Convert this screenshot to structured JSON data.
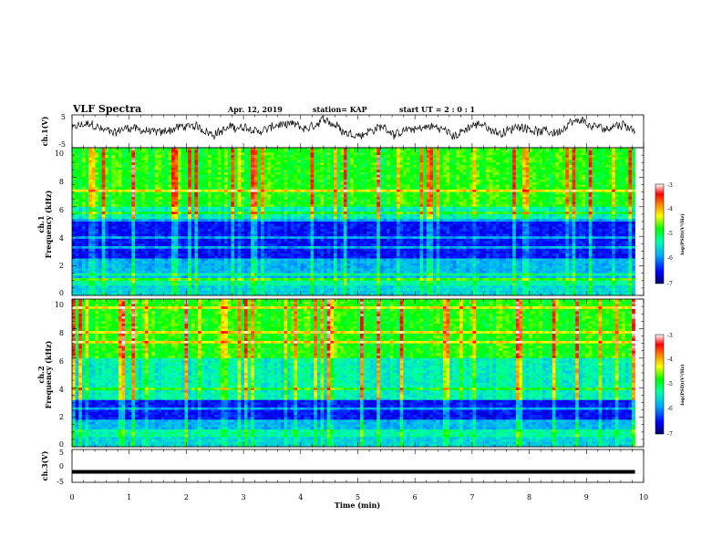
{
  "chart_data": [
    {
      "type": "line",
      "panel": "ch1-waveform",
      "title": "VLF Spectra",
      "date": "Apr. 12, 2019",
      "station": "station= KAP",
      "start": "start  UT =  2 : 0 : 1",
      "ylabel": "ch.1(V)",
      "ylim": [
        -5,
        5
      ],
      "yticks": [
        "5",
        "-5"
      ],
      "xlim": [
        0,
        10
      ],
      "approx_level": 0.6,
      "approx_amplitude": 2.5
    },
    {
      "type": "heatmap",
      "panel": "ch1-spectrogram",
      "ylabel": "ch.1",
      "ylabel2": "Frequency (kHz)",
      "ylim": [
        0,
        10
      ],
      "yticks": [
        "0",
        "2",
        "4",
        "6",
        "8",
        "10"
      ],
      "xlim": [
        0,
        9.85
      ],
      "colorbar": {
        "label": "log(PSD)(V²/Hz)",
        "range": [
          -7,
          -3
        ],
        "ticks": [
          "-3",
          "-4",
          "-5",
          "-6",
          "-7"
        ],
        "colors": [
          "#000070",
          "#0000ff",
          "#00aaff",
          "#00ffaa",
          "#00ff00",
          "#ffff00",
          "#ff8000",
          "#ff0000",
          "#ffffff"
        ]
      }
    },
    {
      "type": "heatmap",
      "panel": "ch2-spectrogram",
      "ylabel": "ch.2",
      "ylabel2": "Frequency (kHz)",
      "ylim": [
        0,
        10
      ],
      "yticks": [
        "0",
        "2",
        "4",
        "6",
        "8",
        "10"
      ],
      "xlim": [
        0,
        9.85
      ],
      "colorbar": {
        "label": "log(PSD)(V²/Hz)",
        "range": [
          -7,
          -3
        ],
        "ticks": [
          "-3",
          "-4",
          "-5",
          "-6",
          "-7"
        ],
        "colors": [
          "#000070",
          "#0000ff",
          "#00aaff",
          "#00ffaa",
          "#00ff00",
          "#ffff00",
          "#ff8000",
          "#ff0000",
          "#ffffff"
        ]
      }
    },
    {
      "type": "line",
      "panel": "ch3-waveform",
      "ylabel": "ch.3(V)",
      "ylim": [
        -5,
        5
      ],
      "yticks": [
        "5",
        "0",
        "-5"
      ],
      "level": -1.8,
      "xlim": [
        0,
        10
      ]
    }
  ],
  "xaxis": {
    "label": "Time (min)",
    "ticks": [
      "0",
      "1",
      "2",
      "3",
      "4",
      "5",
      "6",
      "7",
      "8",
      "9",
      "10"
    ]
  }
}
